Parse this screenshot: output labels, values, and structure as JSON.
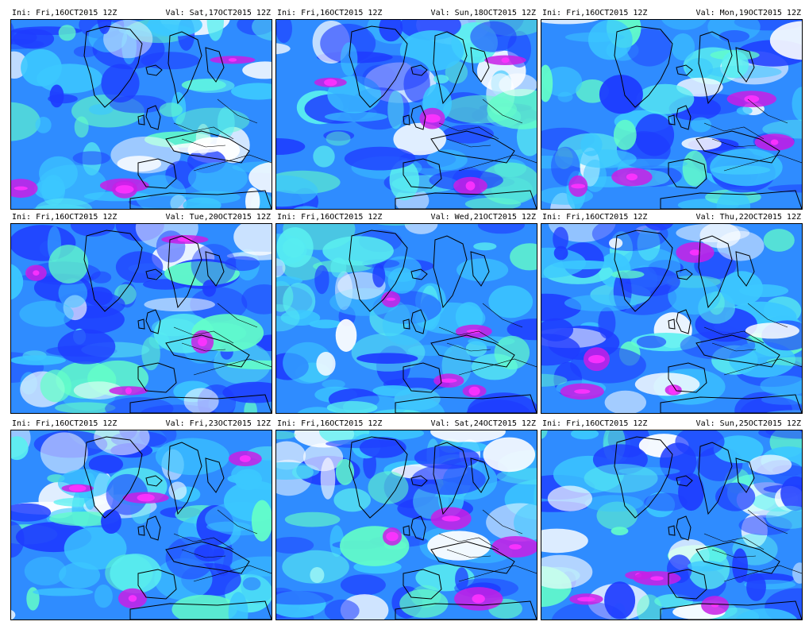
{
  "panels": [
    {
      "ini": "Ini: Fri,16OCT2015 12Z",
      "val": "Val: Sat,17OCT2015 12Z"
    },
    {
      "ini": "Ini: Fri,16OCT2015 12Z",
      "val": "Val: Sun,18OCT2015 12Z"
    },
    {
      "ini": "Ini: Fri,16OCT2015 12Z",
      "val": "Val: Mon,19OCT2015 12Z"
    },
    {
      "ini": "Ini: Fri,16OCT2015 12Z",
      "val": "Val: Tue,20OCT2015 12Z"
    },
    {
      "ini": "Ini: Fri,16OCT2015 12Z",
      "val": "Val: Wed,21OCT2015 12Z"
    },
    {
      "ini": "Ini: Fri,16OCT2015 12Z",
      "val": "Val: Thu,22OCT2015 12Z"
    },
    {
      "ini": "Ini: Fri,16OCT2015 12Z",
      "val": "Val: Fri,23OCT2015 12Z"
    },
    {
      "ini": "Ini: Fri,16OCT2015 12Z",
      "val": "Val: Sat,24OCT2015 12Z"
    },
    {
      "ini": "Ini: Fri,16OCT2015 12Z",
      "val": "Val: Sun,25OCT2015 12Z"
    }
  ],
  "colors": {
    "deep": "#1e3cff",
    "mid": "#2f8cff",
    "light": "#3cc8ff",
    "cyan": "#5af0f0",
    "mint": "#64ffc8",
    "purple": "#c81ee6",
    "magenta": "#ff32ff",
    "coast": "#000000"
  }
}
